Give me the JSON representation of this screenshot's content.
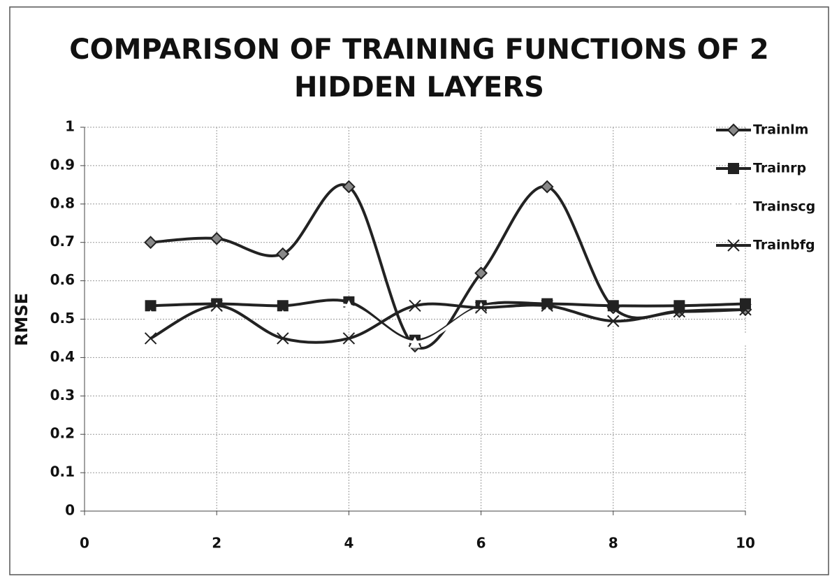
{
  "chart_data": {
    "type": "line",
    "title": [
      "COMPARISON OF TRAINING FUNCTIONS OF 2",
      "HIDDEN LAYERS"
    ],
    "ylabel": "RMSE",
    "x": [
      1,
      2,
      3,
      4,
      5,
      6,
      7,
      8,
      9,
      10
    ],
    "series": [
      {
        "name": "Trainlm",
        "color": "#222222",
        "marker": "diamond",
        "values": [
          0.7,
          0.71,
          0.67,
          0.845,
          0.43,
          0.62,
          0.845,
          0.53,
          0.52,
          0.525
        ]
      },
      {
        "name": "Trainrp",
        "color": "#222222",
        "marker": "square",
        "values": [
          0.535,
          0.54,
          0.535,
          0.545,
          0.445,
          0.535,
          0.54,
          0.535,
          0.535,
          0.54
        ]
      },
      {
        "name": "Trainscg",
        "color": "#ffffff",
        "marker": "triangle",
        "values": [
          0.51,
          0.53,
          0.51,
          0.535,
          0.44,
          0.53,
          0.52,
          0.5,
          0.47,
          0.45
        ]
      },
      {
        "name": "Trainbfg",
        "color": "#222222",
        "marker": "x",
        "values": [
          0.45,
          0.535,
          0.45,
          0.45,
          0.535,
          0.53,
          0.535,
          0.495,
          0.52,
          0.525
        ]
      }
    ],
    "xlim": [
      0,
      10
    ],
    "xticks": [
      0,
      2,
      4,
      6,
      8,
      10
    ],
    "ylim": [
      0,
      1
    ],
    "yticks": [
      0,
      0.1,
      0.2,
      0.3,
      0.4,
      0.5,
      0.6,
      0.7,
      0.8,
      0.9,
      1
    ],
    "grid": true,
    "legend": "right"
  }
}
